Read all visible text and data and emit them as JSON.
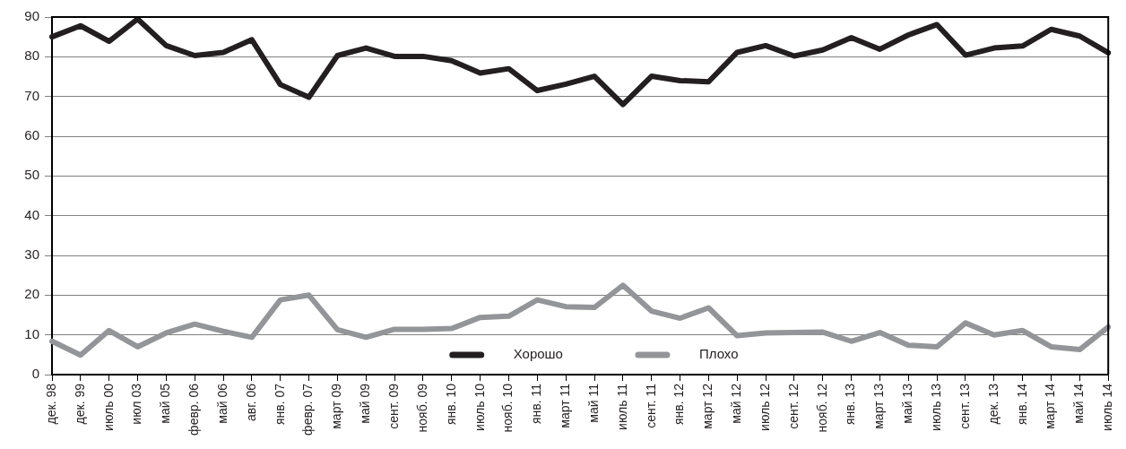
{
  "chart_data": {
    "type": "line",
    "categories": [
      "дек. 98",
      "дек. 99",
      "июль 00",
      "июл 03",
      "май 05",
      "февр. 06",
      "май 06",
      "авг. 06",
      "янв. 07",
      "февр. 07",
      "март 09",
      "май 09",
      "сент. 09",
      "нояб. 09",
      "янв. 10",
      "июль 10",
      "нояб. 10",
      "янв. 11",
      "март 11",
      "май 11",
      "июль 11",
      "сент. 11",
      "янв. 12",
      "март 12",
      "май 12",
      "июль 12",
      "сент. 12",
      "нояб. 12",
      "янв. 13",
      "март 13",
      "май 13",
      "июль 13",
      "сент. 13",
      "дек. 13",
      "янв. 14",
      "март 14",
      "май 14",
      "июль 14"
    ],
    "series": [
      {
        "name": "Хорошо",
        "color": "#231f20",
        "values": [
          85,
          87.8,
          83.9,
          89.5,
          82.8,
          80.3,
          81.1,
          84.3,
          73,
          69.8,
          80.3,
          82.2,
          80.1,
          80.1,
          79,
          75.9,
          77,
          71.5,
          73.1,
          75.1,
          68,
          75.1,
          74,
          73.7,
          81.1,
          82.8,
          80.2,
          81.7,
          84.8,
          81.9,
          85.5,
          88.1,
          80.4,
          82.2,
          82.7,
          86.9,
          85.2,
          81
        ]
      },
      {
        "name": "Плохо",
        "color": "#939598",
        "values": [
          8.4,
          4.9,
          11.1,
          7,
          10.5,
          12.7,
          10.9,
          9.4,
          18.8,
          20,
          11.3,
          9.4,
          11.4,
          11.4,
          11.6,
          14.4,
          14.7,
          18.8,
          17.1,
          16.9,
          22.5,
          16,
          14.2,
          16.8,
          9.8,
          10.5,
          10.6,
          10.7,
          8.4,
          10.6,
          7.4,
          7,
          13,
          10,
          11.1,
          7,
          6.3,
          12
        ]
      }
    ],
    "ylim": [
      0,
      90
    ],
    "yticks": [
      0,
      10,
      20,
      30,
      40,
      50,
      60,
      70,
      80,
      90
    ],
    "grid": "y",
    "legend": "bottom",
    "marker": "none",
    "line_style": "solid"
  }
}
